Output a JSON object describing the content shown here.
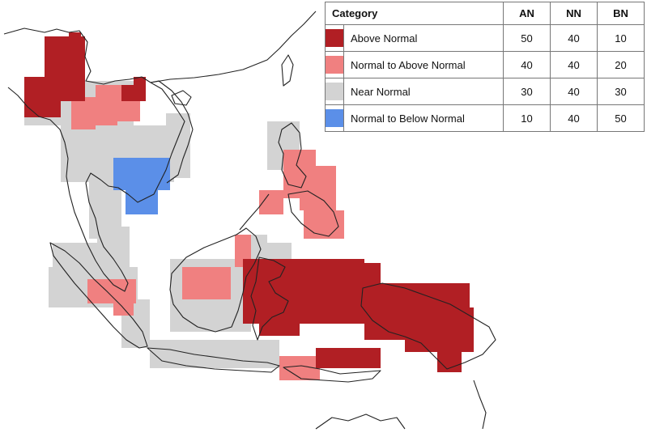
{
  "legend": {
    "headers": {
      "category": "Category",
      "an": "AN",
      "nn": "NN",
      "bn": "BN"
    },
    "rows": [
      {
        "label": "Above Normal",
        "color": "#b11f24",
        "an": "50",
        "nn": "40",
        "bn": "10"
      },
      {
        "label": "Normal to Above Normal",
        "color": "#f08080",
        "an": "40",
        "nn": "40",
        "bn": "20"
      },
      {
        "label": "Near Normal",
        "color": "#d3d3d3",
        "an": "30",
        "nn": "40",
        "bn": "30"
      },
      {
        "label": "Normal to Below Normal",
        "color": "#5b8fe8",
        "an": "10",
        "nn": "40",
        "bn": "50"
      }
    ]
  },
  "map_colors": {
    "above_normal": "#b11f24",
    "normal_to_above": "#f08080",
    "near_normal": "#d3d3d3",
    "normal_to_below": "#5b8fe8",
    "coastline": "#222222"
  }
}
